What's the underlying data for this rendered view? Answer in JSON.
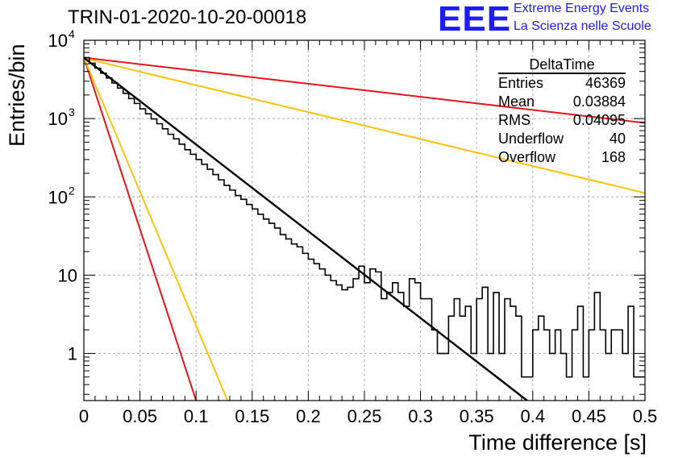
{
  "header": {
    "title": "TRIN-01-2020-10-20-00018",
    "logo": "EEE",
    "logo_line1": "Extreme Energy Events",
    "logo_line2": "La Scienza nelle Scuole"
  },
  "stats_box": {
    "name": "DeltaTime",
    "rows": [
      {
        "label": "Entries",
        "value": "46369"
      },
      {
        "label": "Mean",
        "value": "0.03884"
      },
      {
        "label": "RMS",
        "value": "0.04095"
      },
      {
        "label": "Underflow",
        "value": "40"
      },
      {
        "label": "Overflow",
        "value": "168"
      }
    ]
  },
  "colors": {
    "histogram": "#000000",
    "fit": "#000000",
    "red_line": "#e8141b",
    "yellow_line": "#ffc20e",
    "grid": "#b0b0b0"
  },
  "chart_data": {
    "type": "line",
    "xlabel": "Time difference [s]",
    "ylabel": "Entries/bin",
    "xlim": [
      0,
      0.5
    ],
    "ylim": [
      0.25,
      10000
    ],
    "yscale": "log",
    "grid": true,
    "x_ticks": [
      "0",
      "0.05",
      "0.1",
      "0.15",
      "0.2",
      "0.25",
      "0.3",
      "0.35",
      "0.4",
      "0.45",
      "0.5"
    ],
    "y_ticks": [
      {
        "value": 1,
        "label": "1"
      },
      {
        "value": 10,
        "label": "10"
      },
      {
        "value": 100,
        "label": "10",
        "sup": "2"
      },
      {
        "value": 1000,
        "label": "10",
        "sup": "3"
      },
      {
        "value": 10000,
        "label": "10",
        "sup": "4"
      }
    ],
    "histogram": {
      "bin_width": 0.005,
      "values": [
        6000,
        5100,
        4400,
        3800,
        3300,
        2850,
        2450,
        2100,
        1800,
        1560,
        1330,
        1150,
        990,
        860,
        740,
        630,
        550,
        470,
        400,
        350,
        300,
        260,
        225,
        193,
        165,
        140,
        122,
        104,
        93,
        80,
        70,
        60,
        52,
        46,
        40,
        33,
        29,
        25,
        23,
        19,
        16,
        14,
        12,
        10,
        8.5,
        7.5,
        6.5,
        7,
        9,
        13,
        8,
        12,
        11,
        5,
        6,
        8,
        6,
        4,
        9,
        8,
        5,
        5,
        2,
        1,
        1,
        3,
        5,
        3,
        4,
        1,
        5,
        7,
        1,
        6,
        1,
        5,
        4,
        3,
        0.5,
        0.5,
        2,
        3,
        2,
        1,
        2,
        1,
        0.5,
        2,
        4,
        0.5,
        2,
        6,
        2,
        1,
        2,
        2,
        1,
        4,
        0.5,
        0.5
      ]
    },
    "fit": {
      "x0": 0.0,
      "y0": 6000,
      "x1": 0.395,
      "y1": 0.25
    },
    "guide_lines": [
      {
        "color": "red",
        "points": [
          [
            0,
            6000
          ],
          [
            0.5,
            880
          ]
        ]
      },
      {
        "color": "yellow",
        "points": [
          [
            0,
            5900
          ],
          [
            0.5,
            112
          ]
        ]
      },
      {
        "color": "red",
        "points": [
          [
            0,
            6000
          ],
          [
            0.1,
            0.25
          ]
        ]
      },
      {
        "color": "yellow",
        "points": [
          [
            0,
            6000
          ],
          [
            0.128,
            0.25
          ]
        ]
      }
    ]
  }
}
